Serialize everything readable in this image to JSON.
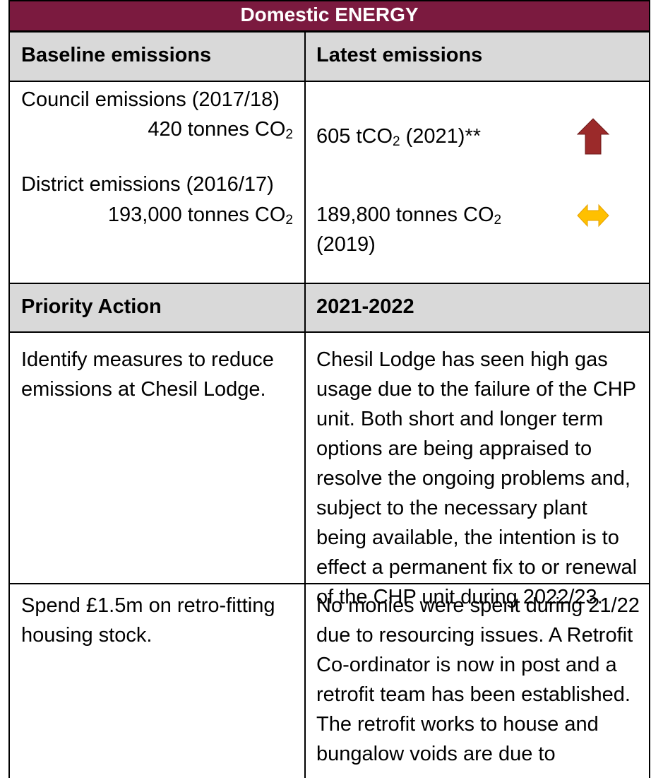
{
  "table": {
    "title": "Domestic ENERGY",
    "header": [
      "Baseline emissions",
      "Latest emissions"
    ],
    "baseline": [
      {
        "label": "Council emissions (2017/18)",
        "value": [
          "420 tonnes CO",
          "2"
        ]
      },
      {
        "label": "District emissions (2016/17)",
        "value": [
          "193,000 tonnes CO",
          "2"
        ]
      }
    ],
    "latest": [
      [
        "605 tCO",
        "2",
        "(2021)**"
      ],
      [
        "189,800 tonnes CO",
        "2",
        "(2019)"
      ]
    ],
    "action_header": [
      "Priority Action",
      "2021-2022"
    ],
    "rows": [
      [
        "Identify measures to reduce emissions at Chesil Lodge.",
        "Chesil Lodge has seen high gas usage due to the failure of the CHP unit.  Both short and longer term options are being appraised to resolve the ongoing problems and, subject to the necessary plant being available, the intention is to effect a permanent fix to or renewal of the CHP unit during 2022/23."
      ],
      [
        "Spend £1.5m on retro-fitting housing stock.",
        "No monies were spent during 21/22 due to resourcing issues. A Retrofit Co-ordinator is now in post and a retrofit team has been established. The retrofit works to house and bungalow voids are due to"
      ]
    ]
  }
}
